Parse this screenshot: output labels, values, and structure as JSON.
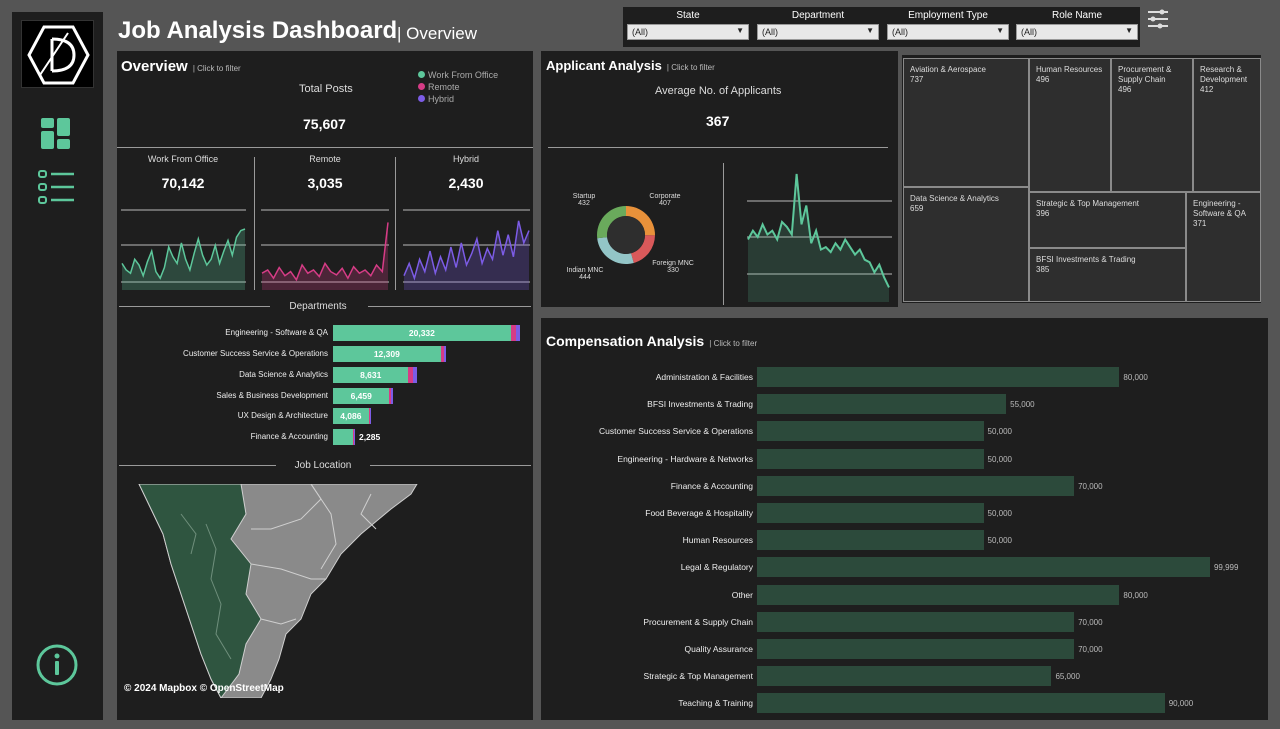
{
  "header": {
    "title": "Job Analysis Dashboard",
    "subtitle": "| Overview"
  },
  "filters": [
    {
      "label": "State",
      "value": "(All)"
    },
    {
      "label": "Department",
      "value": "(All)"
    },
    {
      "label": "Employment Type",
      "value": "(All)"
    },
    {
      "label": "Role Name",
      "value": "(All)"
    }
  ],
  "sidebar": {
    "icons": [
      "dashboard-grid-icon",
      "list-icon",
      "info-icon"
    ]
  },
  "overview": {
    "title": "Overview",
    "click_hint": "| Click to filter",
    "total_label": "Total Posts",
    "total_value": "75,607",
    "legend": [
      {
        "name": "Work From Office",
        "color": "#5dc79b"
      },
      {
        "name": "Remote",
        "color": "#d63c86"
      },
      {
        "name": "Hybrid",
        "color": "#7c5ce6"
      }
    ],
    "kpis": [
      {
        "label": "Work From Office",
        "value": "70,142",
        "color": "#5dc79b"
      },
      {
        "label": "Remote",
        "value": "3,035",
        "color": "#d63c86"
      },
      {
        "label": "Hybrid",
        "value": "2,430",
        "color": "#7c5ce6"
      }
    ],
    "departments_title": "Departments",
    "location_title": "Job Location",
    "map_attribution": "© 2024 Mapbox  © OpenStreetMap"
  },
  "departments": [
    {
      "name": "Engineering - Software & QA",
      "value": 20332,
      "label": "20,332",
      "remote": 560,
      "hybrid": 460
    },
    {
      "name": "Customer Success Service & Operations",
      "value": 12309,
      "label": "12,309",
      "remote": 350,
      "hybrid": 250
    },
    {
      "name": "Data Science & Analytics",
      "value": 8631,
      "label": "8,631",
      "remote": 520,
      "hybrid": 420
    },
    {
      "name": "Sales & Business Development",
      "value": 6459,
      "label": "6,459",
      "remote": 220,
      "hybrid": 160
    },
    {
      "name": "UX Design & Architecture",
      "value": 4086,
      "label": "4,086",
      "remote": 100,
      "hybrid": 60
    },
    {
      "name": "Finance & Accounting",
      "value": 2285,
      "label": "2,285",
      "remote": 40,
      "hybrid": 30
    }
  ],
  "applicants": {
    "title": "Applicant Analysis",
    "click_hint": "| Click to filter",
    "avg_label": "Average No. of Applicants",
    "avg_value": "367",
    "donut": [
      {
        "name": "Corporate",
        "value": 407,
        "label": "407",
        "color": "#e8913a"
      },
      {
        "name": "Foreign MNC",
        "value": 330,
        "label": "330",
        "color": "#d9595a"
      },
      {
        "name": "Indian MNC",
        "value": 444,
        "label": "444",
        "color": "#93c5c7"
      },
      {
        "name": "Startup",
        "value": 432,
        "label": "432",
        "color": "#6aaa5c"
      }
    ]
  },
  "treemap": [
    {
      "name": "Aviation & Aerospace",
      "value": "737"
    },
    {
      "name": "Human Resources",
      "value": "496"
    },
    {
      "name": "Procurement & Supply Chain",
      "value": "496"
    },
    {
      "name": "Research & Development",
      "value": "412"
    },
    {
      "name": "Data Science & Analytics",
      "value": "659"
    },
    {
      "name": "Strategic & Top Management",
      "value": "396"
    },
    {
      "name": "Engineering - Software & QA",
      "value": "371"
    },
    {
      "name": "BFSI Investments & Trading",
      "value": "385"
    }
  ],
  "compensation": {
    "title": "Compensation Analysis",
    "click_hint": "| Click to filter"
  },
  "chart_data": [
    {
      "type": "line",
      "series": [
        {
          "values": [
            30,
            22,
            18,
            35,
            28,
            15,
            32,
            45,
            20,
            12,
            25,
            50,
            38,
            30,
            55,
            35,
            22,
            42,
            60,
            40,
            28,
            35,
            52,
            30,
            45,
            58,
            40,
            62,
            70,
            72
          ]
        }
      ]
    },
    {
      "type": "line",
      "series": [
        {
          "values": [
            18,
            22,
            12,
            25,
            15,
            20,
            10,
            28,
            18,
            22,
            14,
            30,
            20,
            16,
            24,
            12,
            26,
            18,
            22,
            15,
            28,
            20,
            80
          ]
        }
      ]
    },
    {
      "type": "line",
      "series": [
        {
          "values": [
            15,
            30,
            12,
            35,
            20,
            45,
            18,
            38,
            22,
            50,
            25,
            55,
            28,
            42,
            60,
            30,
            48,
            35,
            70,
            40,
            65,
            38,
            82,
            55,
            70
          ]
        }
      ]
    },
    {
      "type": "pie",
      "categories": [
        "Corporate",
        "Foreign MNC",
        "Indian MNC",
        "Startup"
      ],
      "values": [
        407,
        330,
        444,
        432
      ]
    },
    {
      "type": "area",
      "series": [
        {
          "values": [
            48,
            55,
            50,
            60,
            52,
            55,
            48,
            62,
            58,
            52,
            100,
            60,
            75,
            45,
            55,
            40,
            42,
            38,
            45,
            40,
            48,
            42,
            36,
            40,
            32,
            30,
            22,
            28,
            18,
            10
          ]
        }
      ]
    },
    {
      "type": "bar",
      "categories": [
        "Administration & Facilities",
        "BFSI Investments & Trading",
        "Customer Success Service & Operations",
        "Engineering - Hardware & Networks",
        "Finance & Accounting",
        "Food Beverage & Hospitality",
        "Human Resources",
        "Legal & Regulatory",
        "Other",
        "Procurement & Supply Chain",
        "Quality Assurance",
        "Strategic & Top Management",
        "Teaching & Training"
      ],
      "values": [
        80000,
        55000,
        50000,
        50000,
        70000,
        50000,
        50000,
        99999,
        80000,
        70000,
        70000,
        65000,
        90000
      ],
      "labels": [
        "80,000",
        "55,000",
        "50,000",
        "50,000",
        "70,000",
        "50,000",
        "50,000",
        "99,999",
        "80,000",
        "70,000",
        "70,000",
        "65,000",
        "90,000"
      ]
    }
  ]
}
